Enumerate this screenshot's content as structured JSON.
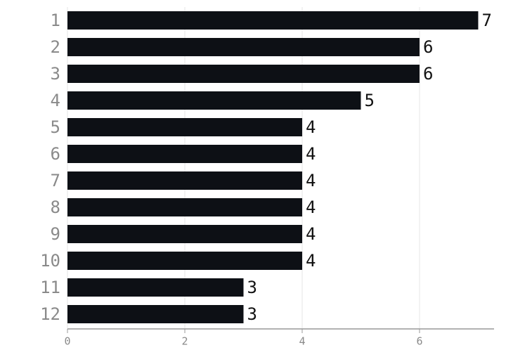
{
  "chart_data": {
    "type": "bar",
    "orientation": "horizontal",
    "categories": [
      "1",
      "2",
      "3",
      "4",
      "5",
      "6",
      "7",
      "8",
      "9",
      "10",
      "11",
      "12"
    ],
    "values": [
      7,
      6,
      6,
      5,
      4,
      4,
      4,
      4,
      4,
      4,
      3,
      3
    ],
    "color": "#0d1015",
    "xlim": [
      0,
      7.27
    ],
    "xticks": [
      0,
      2,
      4,
      6
    ],
    "grid": true
  }
}
